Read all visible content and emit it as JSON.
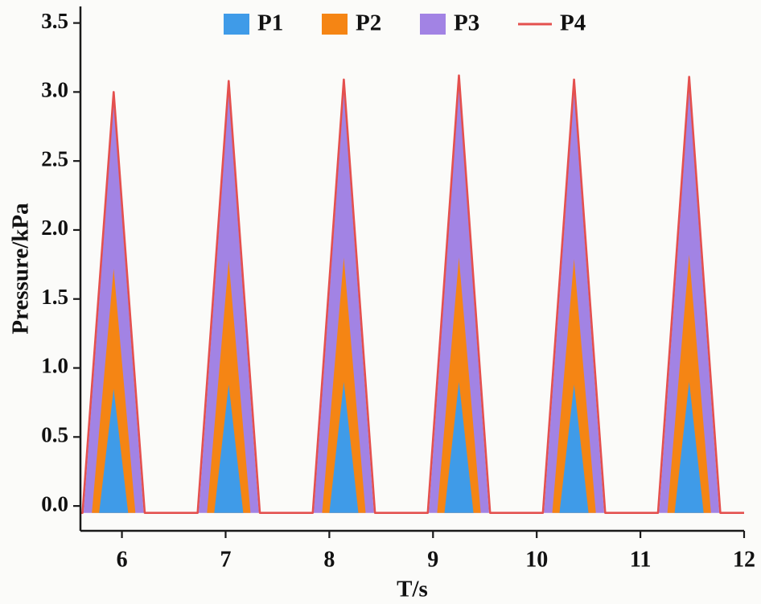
{
  "figure": {
    "description": "Periodic pressure waveform plot with nested triangular peaks"
  },
  "chart_data": {
    "type": "area",
    "title": "",
    "xlabel": "T/s",
    "ylabel": "Pressure/kPa",
    "xlim": [
      5.6,
      12
    ],
    "ylim": [
      -0.18,
      3.62
    ],
    "xticks": [
      6,
      7,
      8,
      9,
      10,
      11,
      12
    ],
    "yticks": [
      0.0,
      0.5,
      1.0,
      1.5,
      2.0,
      2.5,
      3.0,
      3.5
    ],
    "grid": false,
    "legend_position": "top-center",
    "baseline": -0.05,
    "peak_centers": [
      5.92,
      7.03,
      8.14,
      9.25,
      10.36,
      11.47
    ],
    "series": [
      {
        "name": "P3",
        "style": "area",
        "color": "#a283e4",
        "half_width": 0.29,
        "peaks": [
          2.93,
          3.0,
          3.01,
          3.05,
          3.01,
          3.03
        ]
      },
      {
        "name": "P2",
        "style": "area",
        "color": "#f58514",
        "half_width": 0.21,
        "peaks": [
          1.72,
          1.78,
          1.8,
          1.8,
          1.79,
          1.82
        ]
      },
      {
        "name": "P1",
        "style": "area",
        "color": "#3f9be8",
        "half_width": 0.14,
        "peaks": [
          0.85,
          0.88,
          0.9,
          0.9,
          0.88,
          0.9
        ]
      },
      {
        "name": "P4",
        "style": "line",
        "color": "#e4504e",
        "half_width": 0.3,
        "peaks": [
          3.0,
          3.08,
          3.09,
          3.12,
          3.09,
          3.11
        ]
      }
    ],
    "legend_order": [
      "P1",
      "P2",
      "P3",
      "P4"
    ],
    "axis_color": "#1a1a1a"
  }
}
